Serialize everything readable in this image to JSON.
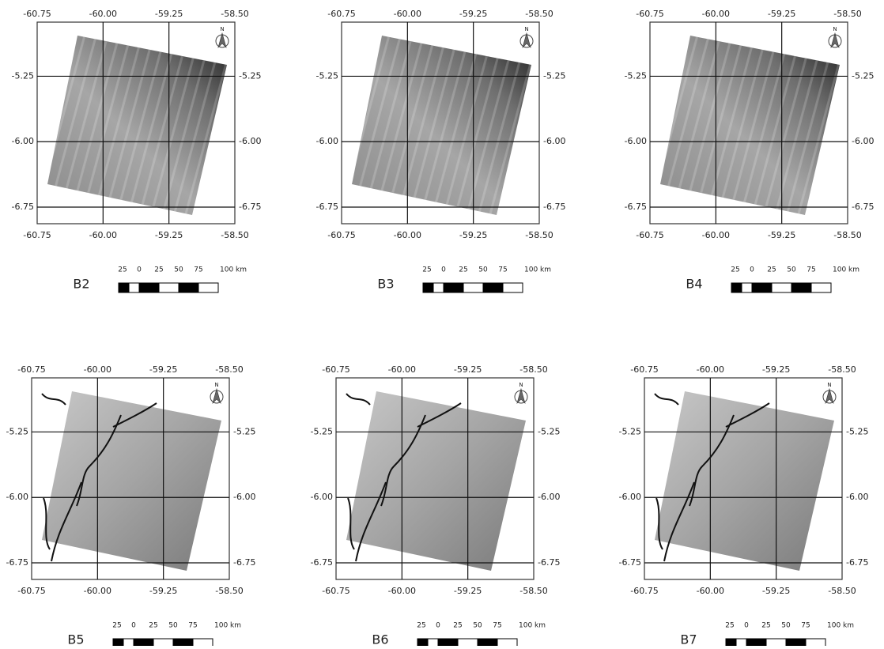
{
  "axes": {
    "xlim": [
      -60.75,
      -58.5
    ],
    "ylim": [
      -6.94,
      -4.63
    ],
    "x_ticks": [
      {
        "value": -60.75,
        "label": "-60.75"
      },
      {
        "value": -60.0,
        "label": "-60.00"
      },
      {
        "value": -59.25,
        "label": "-59.25"
      },
      {
        "value": -58.5,
        "label": "-58.50"
      }
    ],
    "y_ticks": [
      {
        "value": -5.25,
        "label": "-5.25"
      },
      {
        "value": -6.0,
        "label": "-6.00"
      },
      {
        "value": -6.75,
        "label": "-6.75"
      }
    ]
  },
  "north": "N",
  "scale_bar": {
    "labels": [
      "25",
      "0",
      "25",
      "50",
      "75",
      "100 km"
    ]
  },
  "panels": [
    {
      "label": "B2"
    },
    {
      "label": "B3"
    },
    {
      "label": "B4"
    },
    {
      "label": "B5"
    },
    {
      "label": "B6"
    },
    {
      "label": "B7"
    }
  ]
}
